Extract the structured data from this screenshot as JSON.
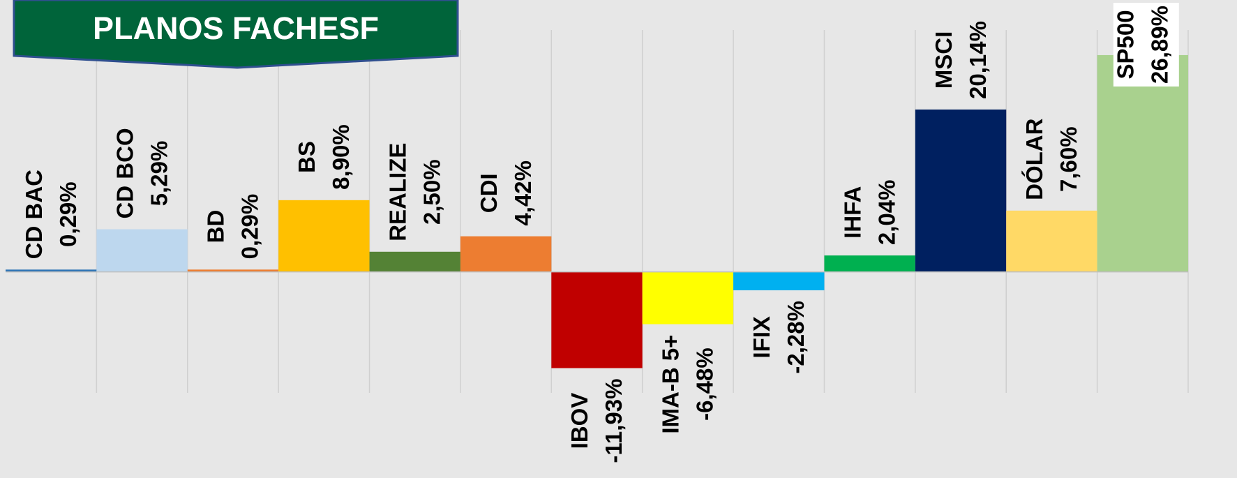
{
  "chart_data": {
    "type": "bar",
    "title": "PLANOS FACHESF",
    "categories": [
      "CD BAC",
      "CD BCO",
      "BD",
      "BS",
      "REALIZE",
      "CDI",
      "IBOV",
      "IMA-B 5+",
      "IFIX",
      "IHFA",
      "MSCI",
      "DÓLAR",
      "SP500"
    ],
    "values": [
      0.29,
      5.29,
      0.29,
      8.9,
      2.5,
      4.42,
      -11.93,
      -6.48,
      -2.28,
      2.04,
      20.14,
      7.6,
      26.89
    ],
    "value_labels": [
      "0,29%",
      "5,29%",
      "0,29%",
      "8,90%",
      "2,50%",
      "4,42%",
      "-11,93%",
      "-6,48%",
      "-2,28%",
      "2,04%",
      "20,14%",
      "7,60%",
      "26,89%"
    ],
    "colors": [
      "#2e75b6",
      "#bdd7ee",
      "#ed7d31",
      "#ffc000",
      "#548235",
      "#ed7d31",
      "#c00000",
      "#ffff00",
      "#00b0f0",
      "#00b050",
      "#002060",
      "#ffd966",
      "#a9d18e"
    ],
    "ylim": [
      -15,
      30
    ]
  }
}
